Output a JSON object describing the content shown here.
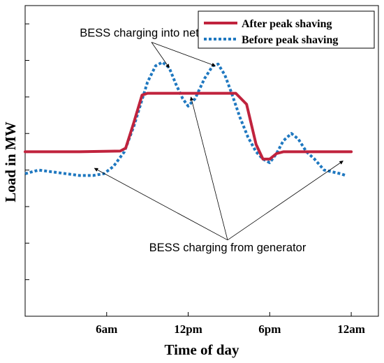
{
  "chart_data": {
    "type": "line",
    "xlabel": "Time of day",
    "ylabel": "Load in MW",
    "x_ticks": [
      {
        "hour": 6,
        "label": "6am"
      },
      {
        "hour": 12,
        "label": "12pm"
      },
      {
        "hour": 18,
        "label": "6pm"
      },
      {
        "hour": 24,
        "label": "12am"
      }
    ],
    "y_tick_count": 8,
    "xlim": [
      0,
      26
    ],
    "ylim": [
      0,
      8.5
    ],
    "grid": false,
    "legend_position": "top-right",
    "series": [
      {
        "name": "After peak shaving",
        "color": "#c0233d",
        "style": "solid",
        "points": [
          [
            0,
            4.5
          ],
          [
            4,
            4.5
          ],
          [
            7,
            4.52
          ],
          [
            7.4,
            4.6
          ],
          [
            8,
            5.3
          ],
          [
            8.6,
            6.05
          ],
          [
            9,
            6.1
          ],
          [
            13,
            6.1
          ],
          [
            15.5,
            6.1
          ],
          [
            16.3,
            5.8
          ],
          [
            17,
            4.7
          ],
          [
            17.5,
            4.3
          ],
          [
            18,
            4.3
          ],
          [
            18.5,
            4.45
          ],
          [
            19,
            4.5
          ],
          [
            24,
            4.5
          ]
        ]
      },
      {
        "name": "Before peak shaving",
        "color": "#1f78c0",
        "style": "dotted",
        "points": [
          [
            0,
            3.9
          ],
          [
            1,
            4.0
          ],
          [
            2,
            3.95
          ],
          [
            3,
            3.9
          ],
          [
            4,
            3.85
          ],
          [
            5,
            3.85
          ],
          [
            5.8,
            3.9
          ],
          [
            6.5,
            4.1
          ],
          [
            7.3,
            4.5
          ],
          [
            8,
            5.2
          ],
          [
            8.5,
            5.8
          ],
          [
            9,
            6.4
          ],
          [
            9.6,
            6.85
          ],
          [
            10.1,
            6.95
          ],
          [
            10.6,
            6.8
          ],
          [
            11.1,
            6.35
          ],
          [
            11.6,
            5.95
          ],
          [
            12,
            5.75
          ],
          [
            12.5,
            5.95
          ],
          [
            13.2,
            6.5
          ],
          [
            13.8,
            6.85
          ],
          [
            14.2,
            6.9
          ],
          [
            14.7,
            6.6
          ],
          [
            15.2,
            6.1
          ],
          [
            15.8,
            5.45
          ],
          [
            16.4,
            4.9
          ],
          [
            17,
            4.5
          ],
          [
            17.5,
            4.3
          ],
          [
            18,
            4.2
          ],
          [
            18.5,
            4.45
          ],
          [
            19,
            4.8
          ],
          [
            19.6,
            5.0
          ],
          [
            20.1,
            4.85
          ],
          [
            20.7,
            4.5
          ],
          [
            21.3,
            4.3
          ],
          [
            22,
            4.0
          ],
          [
            22.6,
            3.95
          ],
          [
            23.2,
            3.9
          ],
          [
            23.6,
            3.85
          ]
        ]
      }
    ],
    "annotations": [
      {
        "text": "BESS charging into network",
        "x": 9.3,
        "y": 7.65,
        "targets": [
          [
            10.6,
            6.8
          ],
          [
            14.0,
            6.85
          ]
        ]
      },
      {
        "text": "BESS charging from generator",
        "x": 14.9,
        "y": 1.78,
        "targets": [
          [
            5.1,
            4.05
          ],
          [
            12.2,
            6.0
          ],
          [
            23.4,
            4.25
          ]
        ]
      }
    ]
  }
}
